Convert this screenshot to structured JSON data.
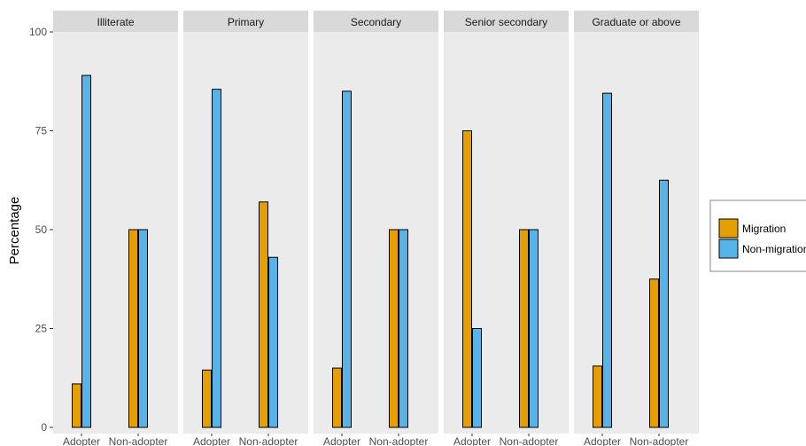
{
  "chart_data": {
    "type": "bar",
    "title": "",
    "xlabel": "",
    "ylabel": "Percentage",
    "ylim": [
      0,
      100
    ],
    "y_ticks": [
      0,
      25,
      50,
      75,
      100
    ],
    "categories": [
      "Adopter",
      "Non-adopter"
    ],
    "grid": false,
    "legend_position": "right",
    "series": [
      {
        "name": "Migration",
        "color": "#E69F00"
      },
      {
        "name": "Non-migration",
        "color": "#56B4E9"
      }
    ],
    "facets": [
      {
        "label": "Illiterate",
        "values": {
          "Migration": [
            11,
            50
          ],
          "Non-migration": [
            89,
            50
          ]
        }
      },
      {
        "label": "Primary",
        "values": {
          "Migration": [
            14.5,
            57
          ],
          "Non-migration": [
            85.5,
            43
          ]
        }
      },
      {
        "label": "Secondary",
        "values": {
          "Migration": [
            15,
            50
          ],
          "Non-migration": [
            85,
            50
          ]
        }
      },
      {
        "label": "Senior secondary",
        "values": {
          "Migration": [
            75,
            50
          ],
          "Non-migration": [
            25,
            50
          ]
        }
      },
      {
        "label": "Graduate or above",
        "values": {
          "Migration": [
            15.5,
            37.5
          ],
          "Non-migration": [
            84.5,
            62.5
          ]
        }
      }
    ],
    "colors": {
      "panel_background": "#EBEBEB",
      "strip_background": "#D9D9D9",
      "bar_outline": "#000000"
    }
  }
}
